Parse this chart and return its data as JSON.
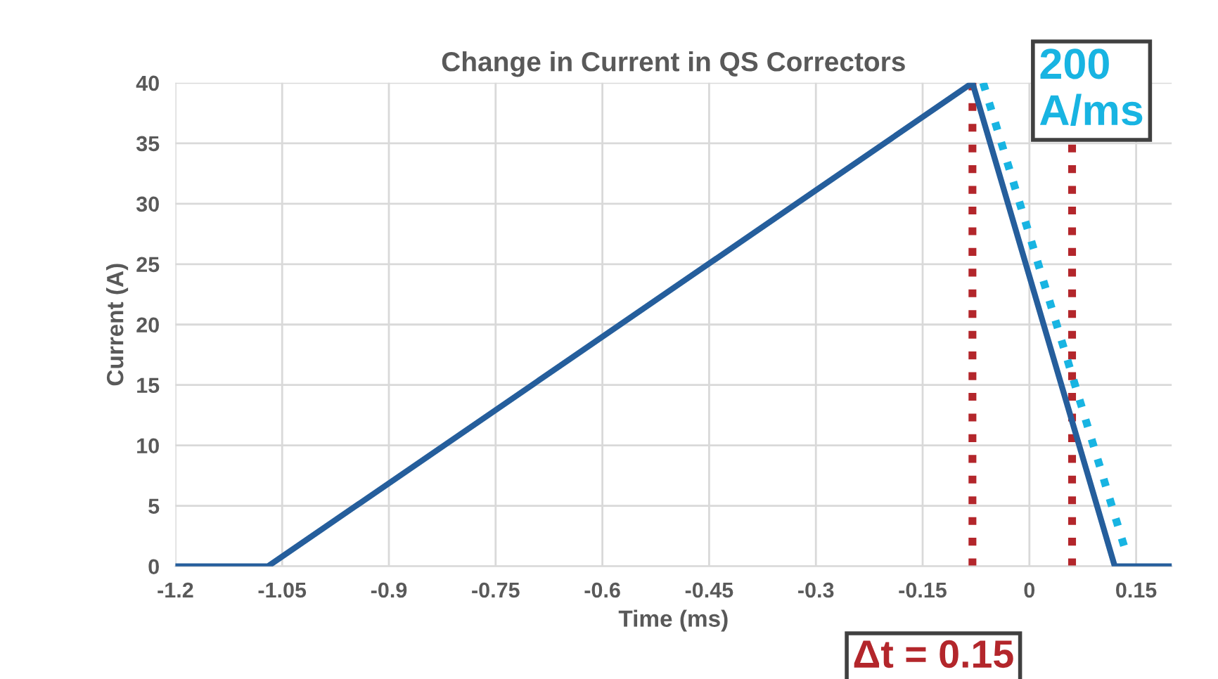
{
  "chart_data": {
    "type": "line",
    "title": "Change in Current in QS Correctors",
    "xlabel": "Time (ms)",
    "ylabel": "Current (A)",
    "series": [
      {
        "color": "#255e9c",
        "x": [
          -1.2,
          -1.07,
          -0.08,
          0.12,
          0.2
        ],
        "values": [
          0,
          0,
          40,
          0,
          0
        ],
        "line_style": "solid"
      },
      {
        "color": "#18b4e2",
        "x": [
          -0.065,
          0.135
        ],
        "values": [
          40,
          1.3
        ],
        "line_style": "dotted"
      }
    ],
    "ref_lines": [
      {
        "axis": "x",
        "value": -0.08,
        "color": "#b3262b",
        "line_style": "dotted"
      },
      {
        "axis": "x",
        "value": 0.06,
        "color": "#b3262b",
        "line_style": "dotted"
      }
    ],
    "annotations": [
      "200\nA/ms",
      "Δt = 0.15"
    ],
    "xlim": [
      -1.2,
      0.2
    ],
    "xticks": [
      -1.2,
      -1.05,
      -0.9,
      -0.75,
      -0.6,
      -0.45,
      -0.3,
      -0.15,
      0,
      0.15
    ],
    "ylim": [
      0,
      40
    ],
    "yticks": [
      0,
      5,
      10,
      15,
      20,
      25,
      30,
      35,
      40
    ],
    "grid": true,
    "legend": false,
    "marker": "none"
  }
}
